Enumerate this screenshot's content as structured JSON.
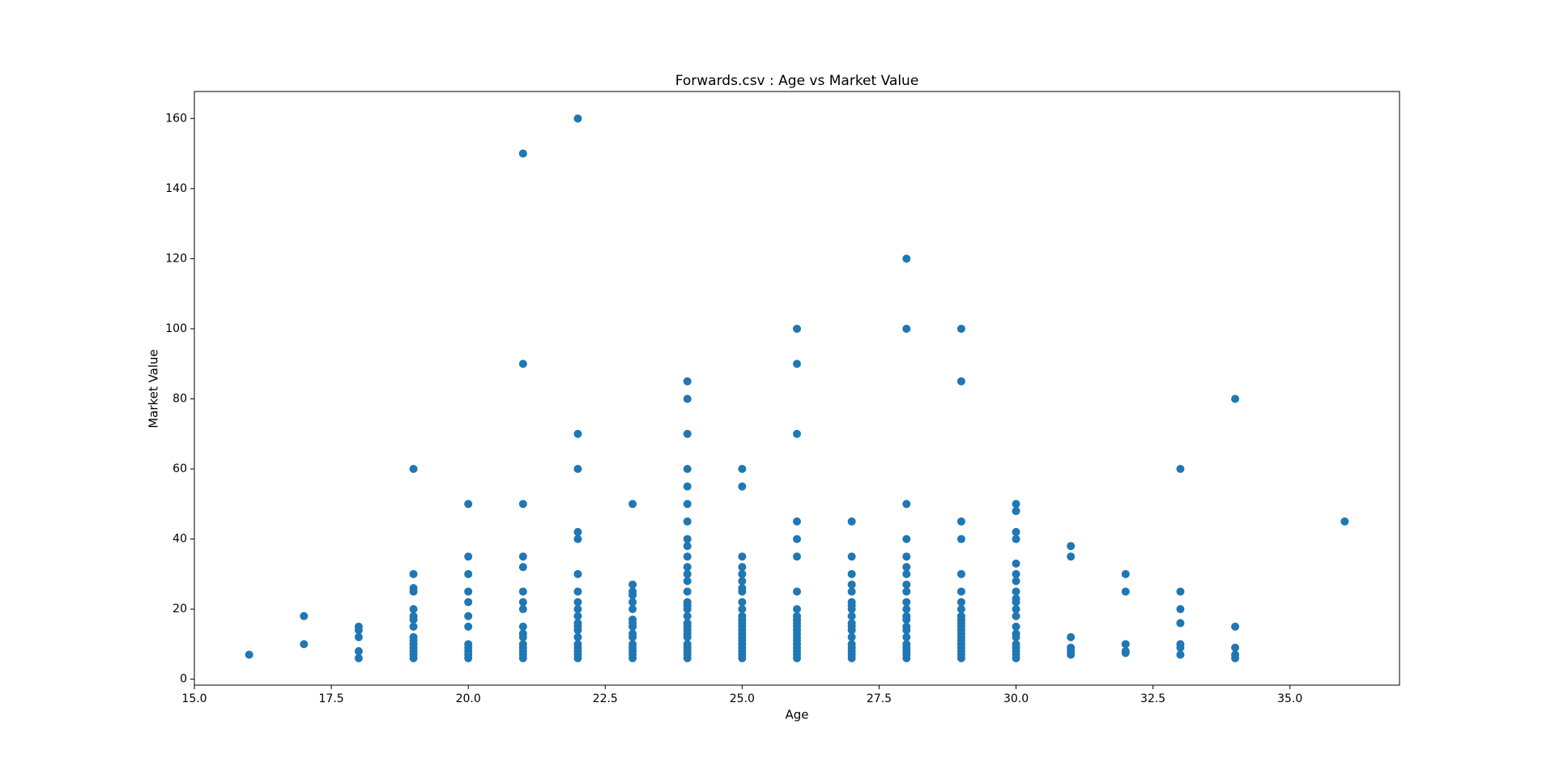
{
  "chart_data": {
    "type": "scatter",
    "title": "Forwards.csv : Age vs Market Value",
    "x_label": "Age",
    "y_label": "Market Value",
    "color": "#1f77b4",
    "xlim": [
      15,
      37
    ],
    "ylim": [
      -1.7,
      167.7
    ],
    "xticks": [
      {
        "value": 15,
        "label": "15.0"
      },
      17.5,
      {
        "value": 20,
        "label": "20.0"
      },
      22.5,
      {
        "value": 25,
        "label": "25.0"
      },
      27.5,
      {
        "value": 30,
        "label": "30.0"
      },
      32.5,
      {
        "value": 35,
        "label": "35.0"
      }
    ],
    "yticks": [
      0,
      20,
      40,
      60,
      80,
      100,
      120,
      140,
      160
    ],
    "x": [
      16,
      17,
      17,
      18,
      18,
      18,
      18,
      18,
      19,
      19,
      19,
      19,
      19,
      19,
      19,
      19,
      19,
      19,
      19,
      19,
      19,
      19,
      19,
      20,
      20,
      20,
      20,
      20,
      20,
      20,
      20,
      20,
      20,
      20,
      20,
      21,
      21,
      21,
      21,
      21,
      21,
      21,
      21,
      21,
      21,
      21,
      21,
      21,
      21,
      21,
      21,
      22,
      22,
      22,
      22,
      22,
      22,
      22,
      22,
      22,
      22,
      22,
      22,
      22,
      22,
      22,
      22,
      22,
      22,
      22,
      23,
      23,
      23,
      23,
      23,
      23,
      23,
      23,
      23,
      23,
      23,
      23,
      23,
      23,
      23,
      23,
      24,
      24,
      24,
      24,
      24,
      24,
      24,
      24,
      24,
      24,
      24,
      24,
      24,
      24,
      24,
      24,
      24,
      24,
      24,
      24,
      24,
      24,
      24,
      24,
      24,
      24,
      24,
      24,
      25,
      25,
      25,
      25,
      25,
      25,
      25,
      25,
      25,
      25,
      25,
      25,
      25,
      25,
      25,
      25,
      25,
      25,
      25,
      25,
      25,
      25,
      25,
      26,
      26,
      26,
      26,
      26,
      26,
      26,
      26,
      26,
      26,
      26,
      26,
      26,
      26,
      26,
      26,
      26,
      26,
      26,
      26,
      26,
      27,
      27,
      27,
      27,
      27,
      27,
      27,
      27,
      27,
      27,
      27,
      27,
      27,
      27,
      27,
      27,
      27,
      27,
      28,
      28,
      28,
      28,
      28,
      28,
      28,
      28,
      28,
      28,
      28,
      28,
      28,
      28,
      28,
      28,
      28,
      28,
      28,
      28,
      28,
      29,
      29,
      29,
      29,
      29,
      29,
      29,
      29,
      29,
      29,
      29,
      29,
      29,
      29,
      29,
      29,
      29,
      29,
      29,
      29,
      29,
      30,
      30,
      30,
      30,
      30,
      30,
      30,
      30,
      30,
      30,
      30,
      30,
      30,
      30,
      30,
      30,
      30,
      30,
      30,
      30,
      31,
      31,
      31,
      31,
      31,
      31,
      32,
      32,
      32,
      32,
      32,
      33,
      33,
      33,
      33,
      33,
      33,
      33,
      34,
      34,
      34,
      34,
      34,
      36
    ],
    "values": [
      7,
      18,
      10,
      15,
      14,
      12,
      8,
      6,
      60,
      30,
      26,
      25,
      20,
      18,
      17,
      15,
      12,
      11,
      10,
      9,
      8,
      7,
      6,
      50,
      35,
      30,
      25,
      22,
      18,
      15,
      10,
      9,
      8,
      7,
      6,
      150,
      90,
      50,
      35,
      32,
      25,
      22,
      20,
      15,
      13,
      12,
      10,
      9,
      8,
      7,
      6,
      160,
      70,
      60,
      42,
      40,
      30,
      25,
      22,
      20,
      18,
      16,
      15,
      14,
      12,
      10,
      9,
      8,
      7,
      6,
      50,
      27,
      25,
      24,
      22,
      20,
      17,
      16,
      15,
      13,
      12,
      10,
      9,
      8,
      7,
      6,
      85,
      80,
      70,
      60,
      55,
      50,
      45,
      40,
      38,
      35,
      32,
      30,
      28,
      25,
      22,
      21,
      20,
      18,
      16,
      15,
      14,
      13,
      12,
      10,
      9,
      8,
      7,
      6,
      60,
      55,
      35,
      32,
      30,
      28,
      26,
      25,
      22,
      20,
      18,
      17,
      16,
      15,
      14,
      13,
      12,
      11,
      10,
      9,
      8,
      7,
      6,
      100,
      90,
      70,
      45,
      40,
      35,
      25,
      20,
      18,
      17,
      16,
      15,
      14,
      13,
      12,
      11,
      10,
      9,
      8,
      7,
      6,
      45,
      35,
      30,
      27,
      25,
      22,
      21,
      20,
      18,
      16,
      15,
      14,
      12,
      10,
      9,
      8,
      7,
      6,
      120,
      100,
      50,
      40,
      35,
      32,
      30,
      27,
      25,
      22,
      20,
      18,
      17,
      15,
      14,
      12,
      10,
      9,
      8,
      7,
      6,
      100,
      85,
      45,
      40,
      30,
      25,
      22,
      20,
      18,
      17,
      16,
      15,
      14,
      13,
      12,
      11,
      10,
      9,
      8,
      7,
      6,
      50,
      48,
      42,
      40,
      33,
      30,
      28,
      25,
      23,
      22,
      20,
      18,
      15,
      13,
      12,
      10,
      9,
      8,
      7,
      6,
      38,
      35,
      12,
      9,
      8,
      7,
      30,
      25,
      10,
      8,
      7.5,
      60,
      25,
      20,
      16,
      10,
      9,
      7,
      80,
      15,
      9,
      7,
      6,
      45
    ]
  }
}
